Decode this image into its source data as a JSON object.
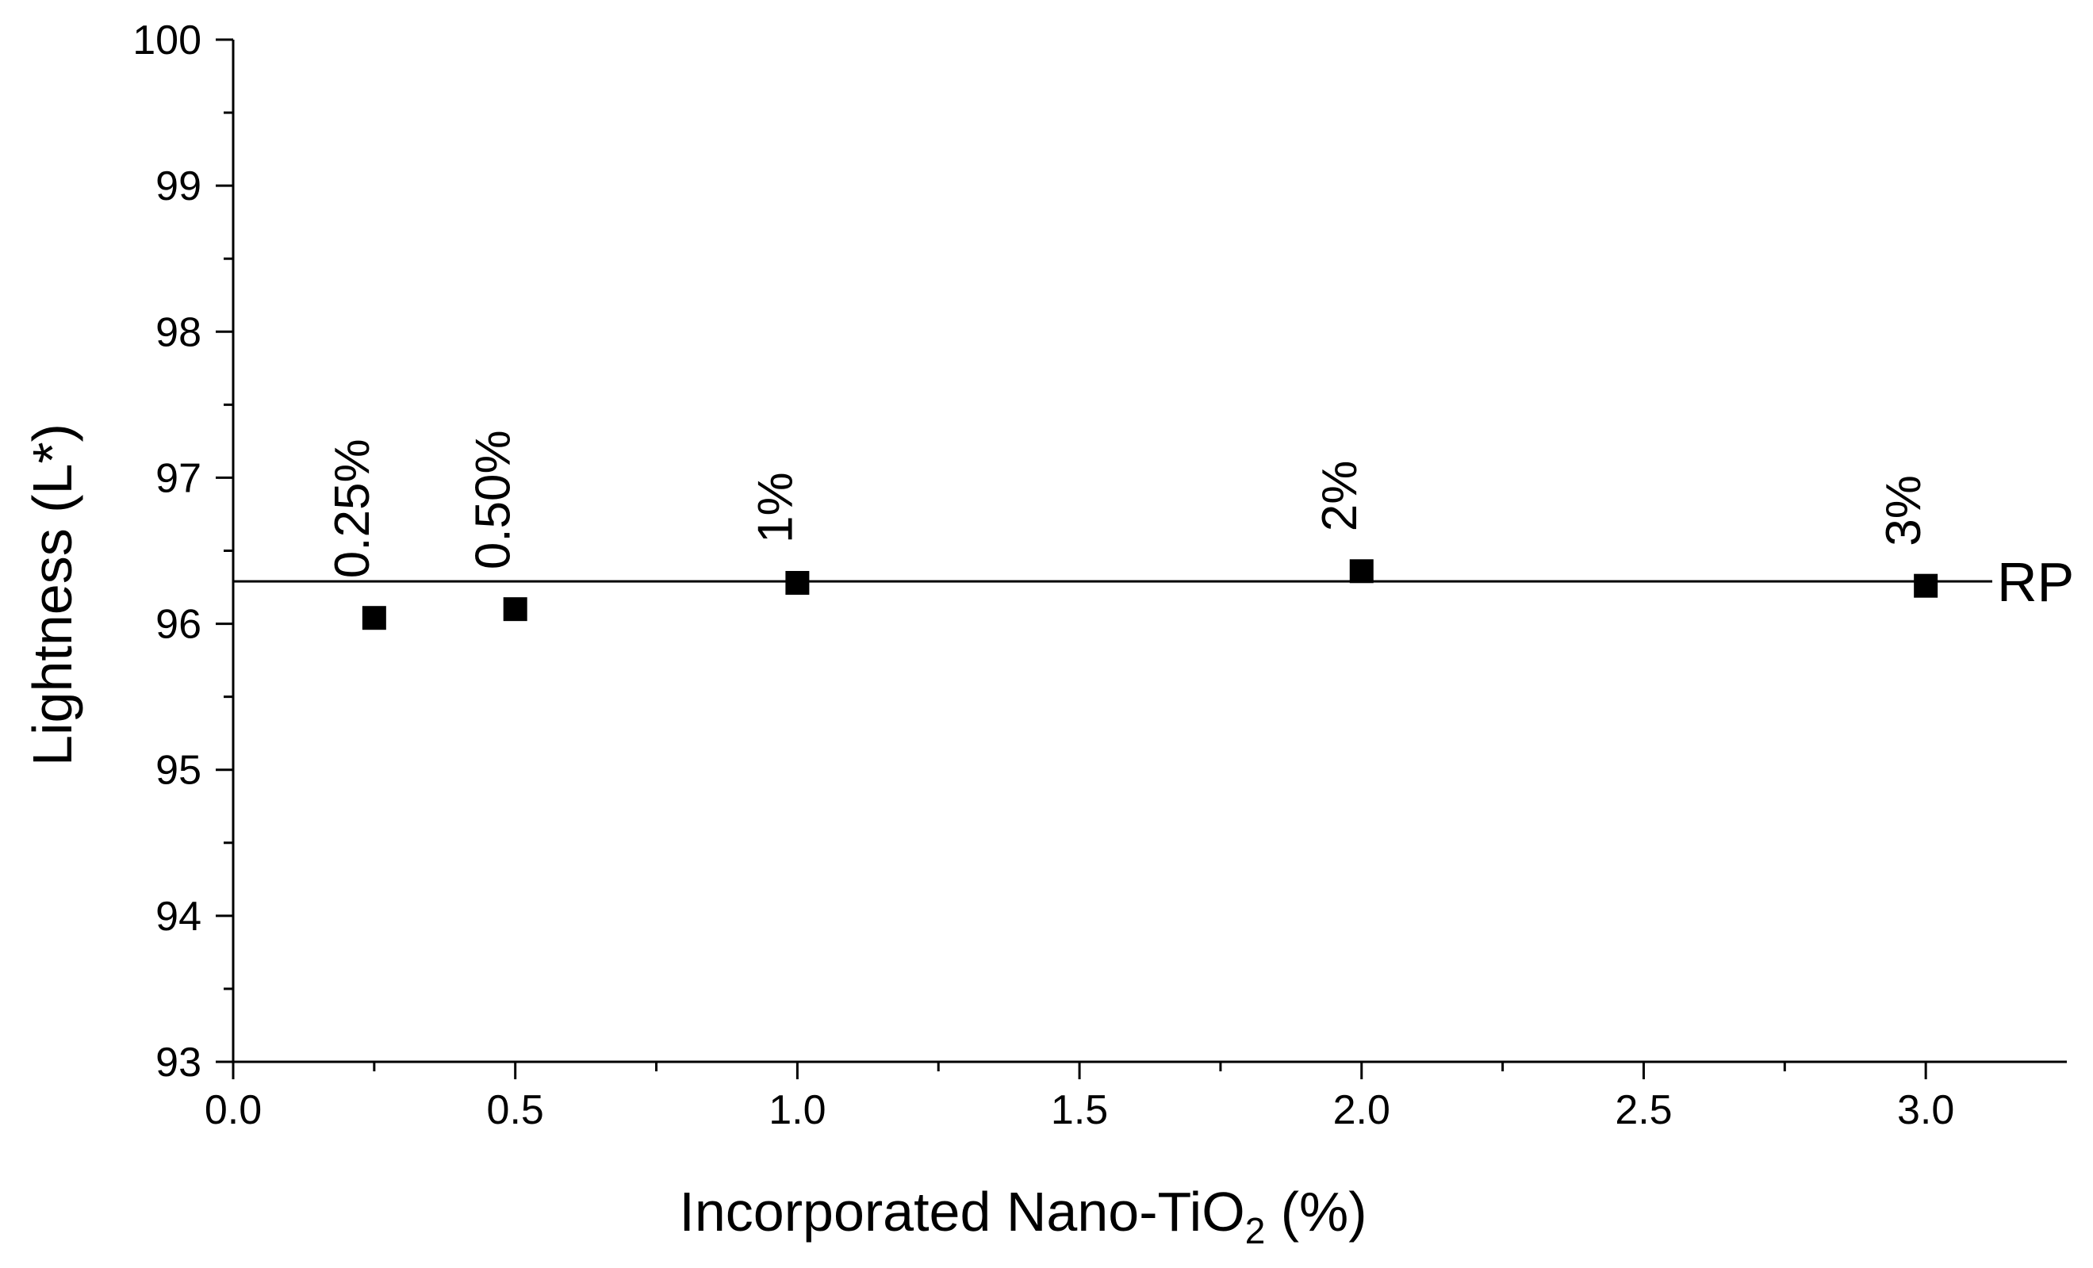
{
  "chart_data": {
    "type": "scatter",
    "xlabel": "Incorporated Nano-TiO",
    "xlabel_subscript": "2",
    "xlabel_suffix": " (%)",
    "ylabel": "Lightness (L*)",
    "xlim": [
      0.0,
      3.25
    ],
    "ylim": [
      93,
      100
    ],
    "x_ticks": [
      0.0,
      0.5,
      1.0,
      1.5,
      2.0,
      2.5,
      3.0
    ],
    "x_tick_labels": [
      "0.0",
      "0.5",
      "1.0",
      "1.5",
      "2.0",
      "2.5",
      "3.0"
    ],
    "y_ticks": [
      93,
      94,
      95,
      96,
      97,
      98,
      99,
      100
    ],
    "y_tick_labels": [
      "93",
      "94",
      "95",
      "96",
      "97",
      "98",
      "99",
      "100"
    ],
    "grid": false,
    "series": [
      {
        "marker": "square",
        "color": "#000000",
        "x": [
          0.25,
          0.5,
          1.0,
          2.0,
          3.0
        ],
        "y": [
          96.04,
          96.1,
          96.28,
          96.36,
          96.26
        ],
        "labels": [
          "0.25%",
          "0.50%",
          "1%",
          "2%",
          "3%"
        ]
      }
    ],
    "reference_line": {
      "y": 96.29,
      "label": "RP",
      "color": "#000000"
    }
  }
}
